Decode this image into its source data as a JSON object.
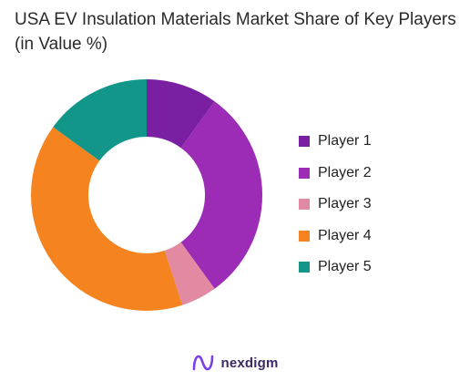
{
  "chart_data": {
    "type": "pie",
    "title": "USA EV Insulation Materials Market Share of Key Players (in Value %)",
    "donut": true,
    "categories": [
      "Player 1",
      "Player 2",
      "Player 3",
      "Player 4",
      "Player 5"
    ],
    "values": [
      10,
      30,
      5,
      40,
      15
    ],
    "colors": [
      "#7a1fa2",
      "#9c2bb5",
      "#e38aa3",
      "#f5831f",
      "#12968a"
    ],
    "legend_position": "right"
  },
  "brand": {
    "name": "nexdigm",
    "logo_color": "#7b3fe4"
  }
}
